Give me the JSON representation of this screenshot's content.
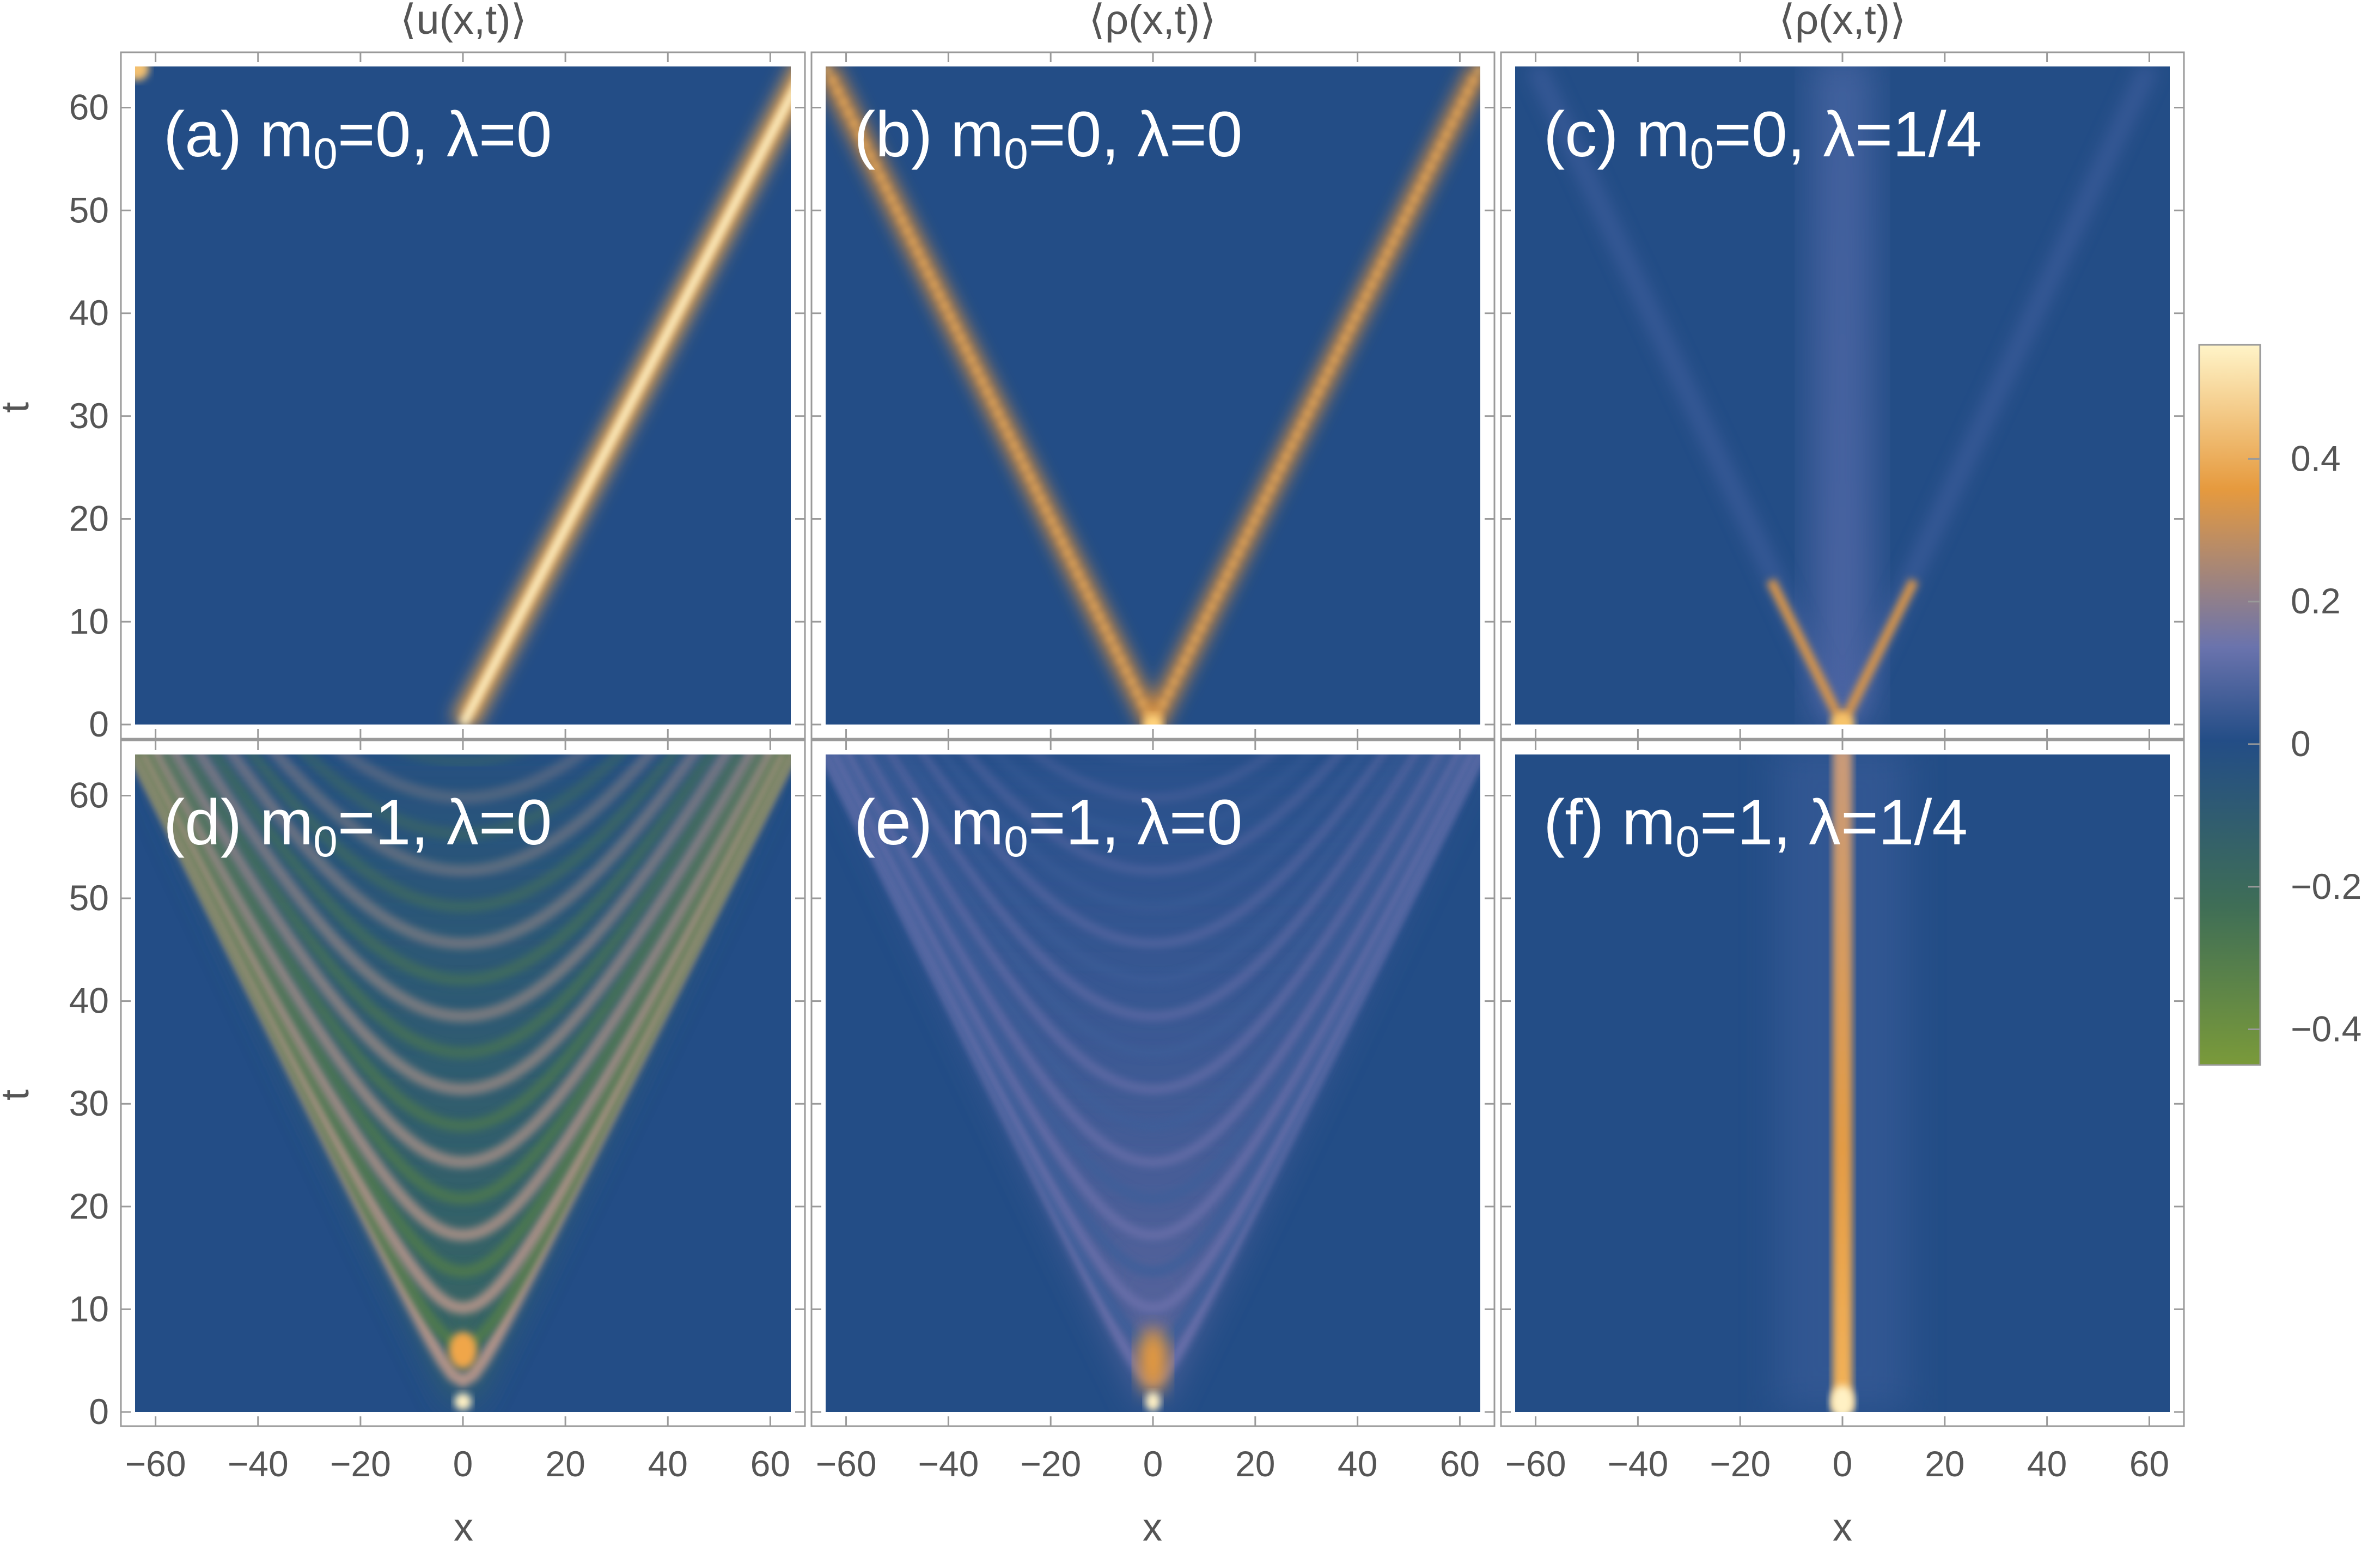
{
  "chart_data": {
    "type": "heatmap",
    "column_titles": [
      "⟨u(x,t)⟩",
      "⟨ρ(x,t)⟩",
      "⟨ρ(x,t)⟩"
    ],
    "xlabel": "x",
    "ylabel": "t",
    "xlim": [
      -64,
      64
    ],
    "ylim": [
      0,
      64
    ],
    "xticks": [
      -60,
      -40,
      -20,
      0,
      20,
      40,
      60
    ],
    "yticks": [
      0,
      10,
      20,
      30,
      40,
      50,
      60
    ],
    "xtick_labels": [
      "−60",
      "−40",
      "−20",
      "0",
      "20",
      "40",
      "60"
    ],
    "ytick_labels": [
      "0",
      "10",
      "20",
      "30",
      "40",
      "50",
      "60"
    ],
    "colorbar": {
      "range": [
        -0.45,
        0.56
      ],
      "ticks": [
        -0.4,
        -0.2,
        0,
        0.2,
        0.4
      ],
      "tick_labels": [
        "−0.4",
        "−0.2",
        "0",
        "0.2",
        "0.4"
      ],
      "colors": [
        "#7a9a3a",
        "#3f6e56",
        "#234d86",
        "#6a73ad",
        "#e69a3e",
        "#fff4c8"
      ]
    },
    "panels": [
      {
        "id": "a",
        "label_prefix": "(a) m",
        "label_sub": "0",
        "label_suffix": "=0, λ=0",
        "quantity": "u",
        "m0": 0,
        "lambda": 0,
        "feature": "right-moving front",
        "path": [
          [
            0,
            0
          ],
          [
            64,
            64
          ]
        ]
      },
      {
        "id": "b",
        "label_prefix": "(b) m",
        "label_sub": "0",
        "label_suffix": "=0, λ=0",
        "quantity": "rho",
        "m0": 0,
        "lambda": 0,
        "feature": "light cone",
        "path": [
          [
            -64,
            64
          ],
          [
            0,
            0
          ],
          [
            64,
            64
          ]
        ]
      },
      {
        "id": "c",
        "label_prefix": "(c) m",
        "label_sub": "0",
        "label_suffix": "=0, λ=1/4",
        "quantity": "rho",
        "m0": 0,
        "lambda": 0.25,
        "feature": "fading light cone with central column"
      },
      {
        "id": "d",
        "label_prefix": "(d) m",
        "label_sub": "0",
        "label_suffix": "=1, λ=0",
        "quantity": "u",
        "m0": 1,
        "lambda": 0,
        "feature": "oscillating interference fringes inside light cone"
      },
      {
        "id": "e",
        "label_prefix": "(e) m",
        "label_sub": "0",
        "label_suffix": "=1, λ=0",
        "quantity": "rho",
        "m0": 1,
        "lambda": 0,
        "feature": "diffuse fringes inside light cone"
      },
      {
        "id": "f",
        "label_prefix": "(f) m",
        "label_sub": "0",
        "label_suffix": "=1, λ=1/4",
        "quantity": "rho",
        "m0": 1,
        "lambda": 0.25,
        "feature": "localized column at x=0"
      }
    ]
  }
}
